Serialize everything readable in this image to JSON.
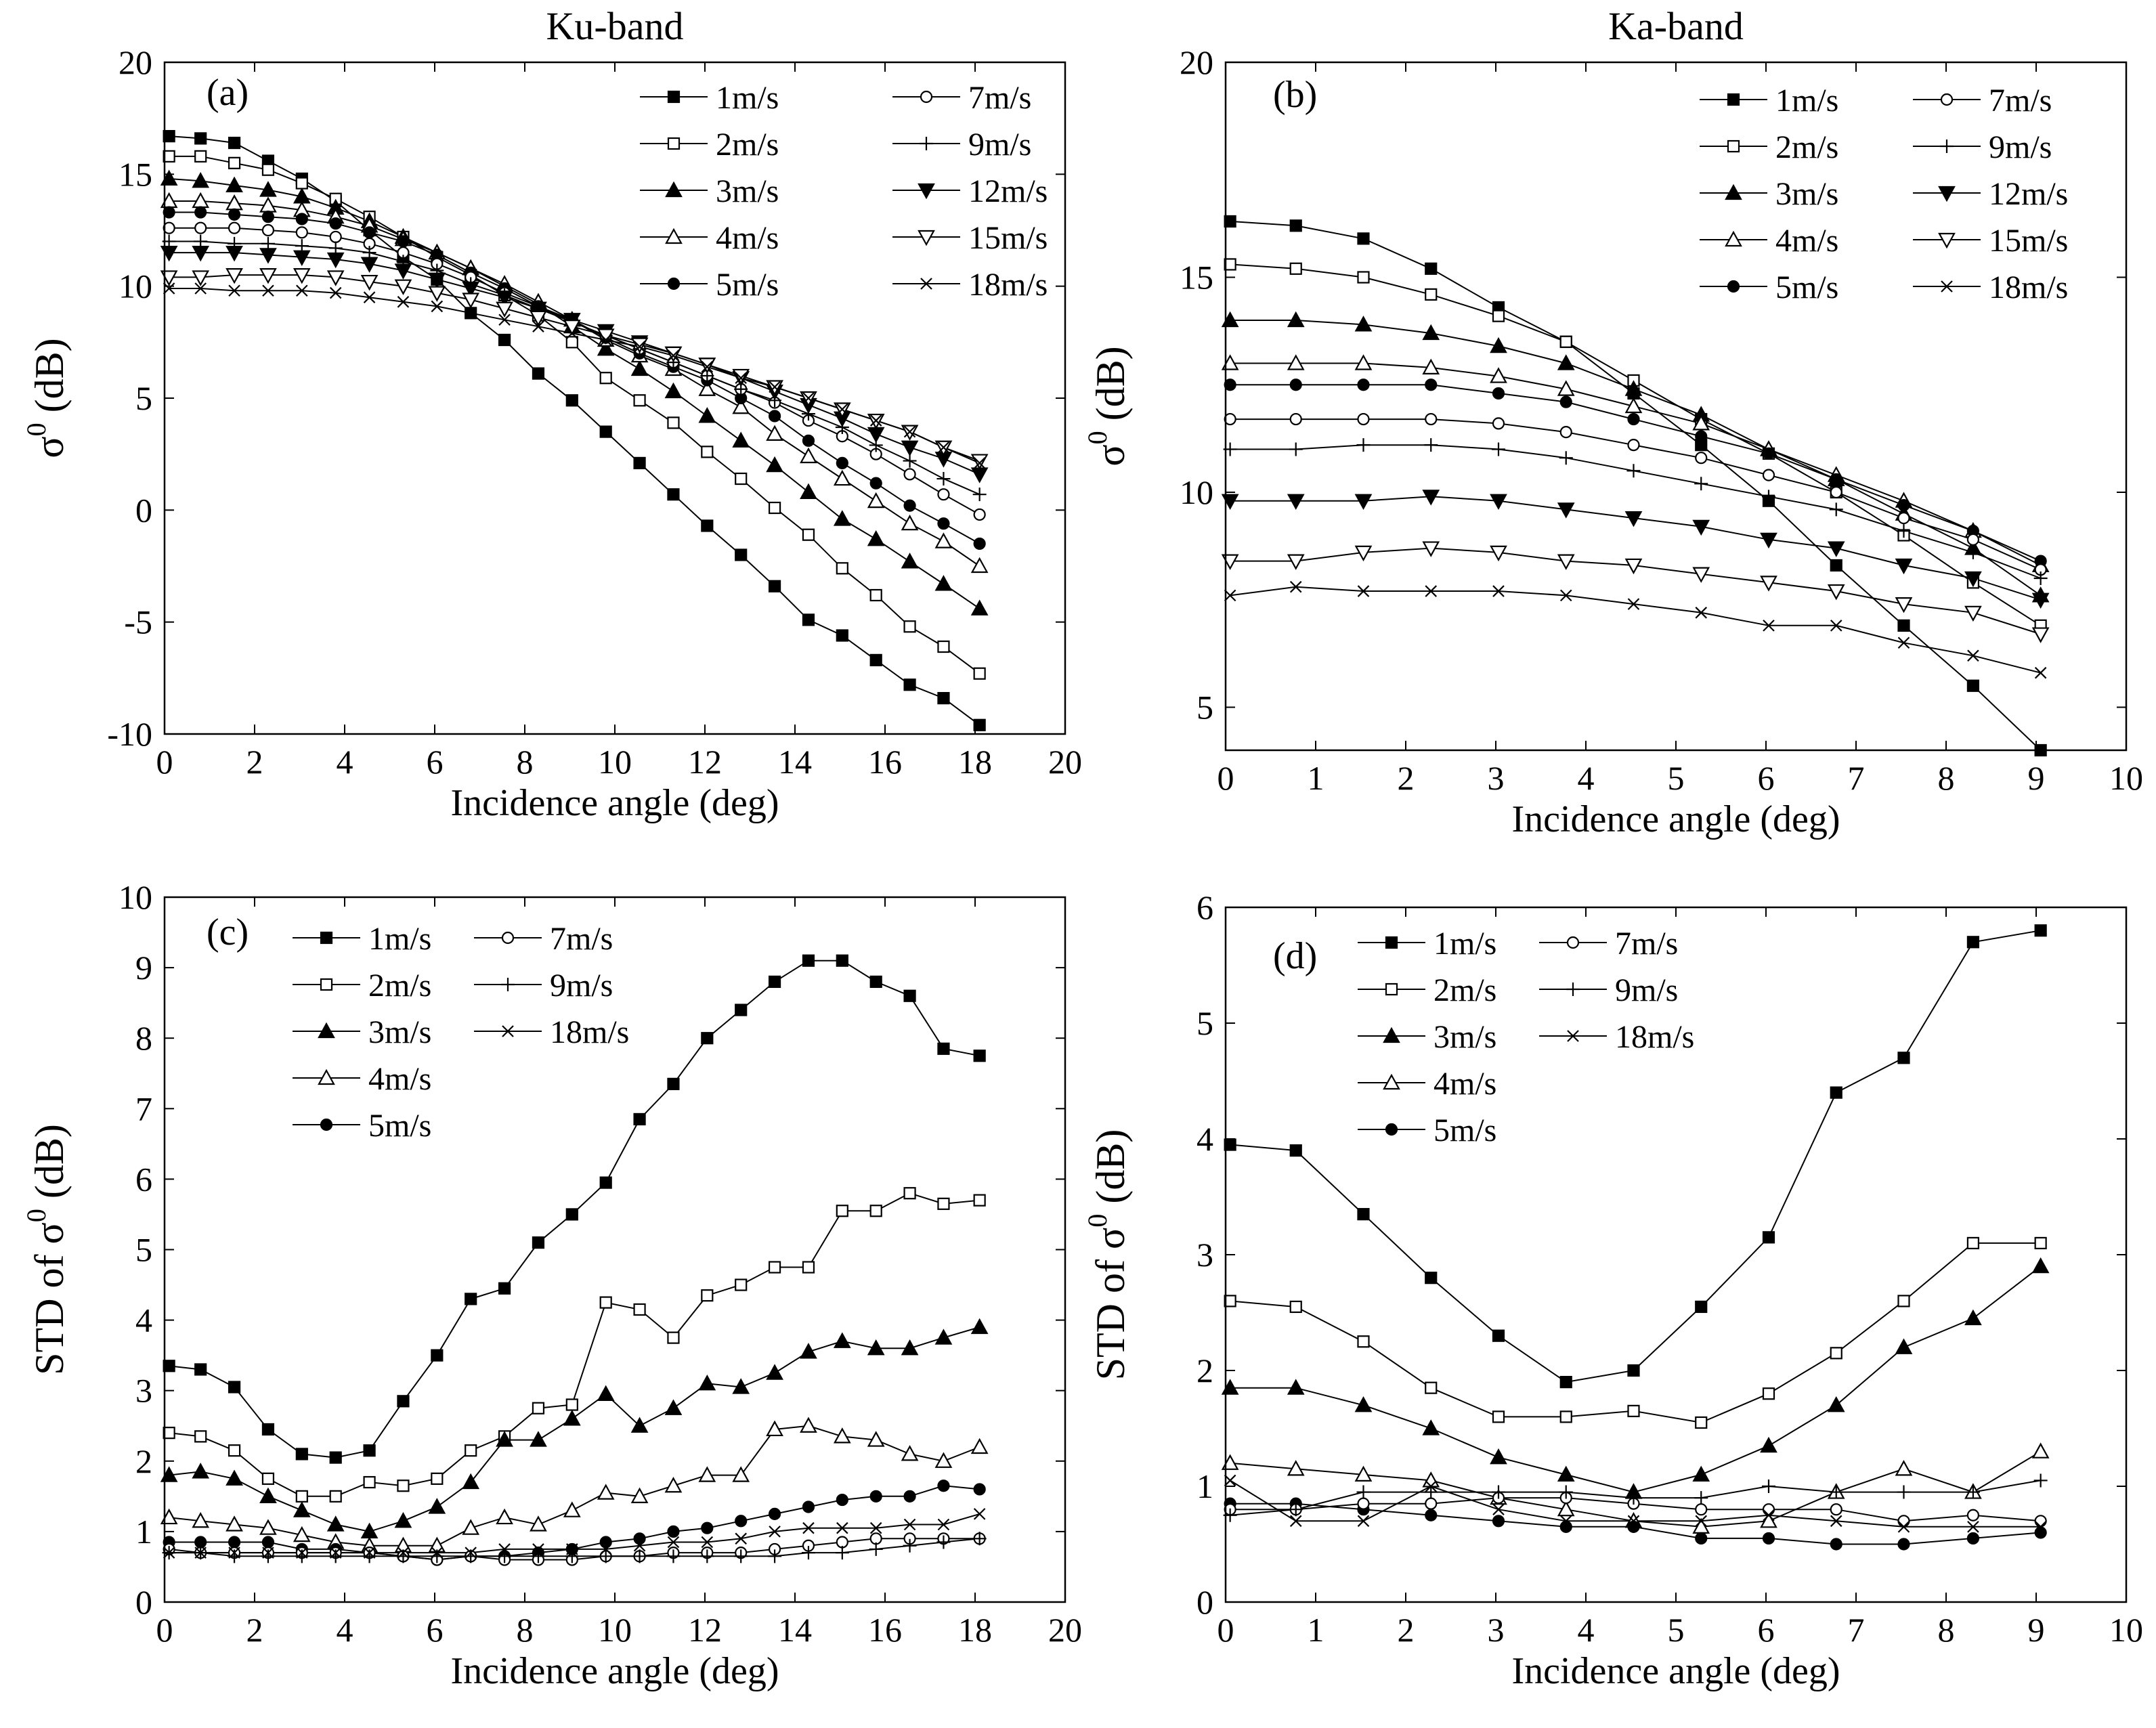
{
  "chart_data": [
    {
      "id": "a",
      "type": "line",
      "title": "Ku-band",
      "panel_label": "(a)",
      "xlabel": "Incidence angle (deg)",
      "ylabel_main": "σ",
      "ylabel_sup": "0",
      "ylabel_tail": " (dB)",
      "xlim": [
        0,
        20
      ],
      "ylim": [
        -10,
        20
      ],
      "xticks": [
        0,
        2,
        4,
        6,
        8,
        10,
        12,
        14,
        16,
        18,
        20
      ],
      "yticks": [
        -10,
        -5,
        0,
        5,
        10,
        15,
        20
      ],
      "x": [
        0.1,
        0.8,
        1.55,
        2.3,
        3.05,
        3.8,
        4.55,
        5.3,
        6.05,
        6.8,
        7.55,
        8.3,
        9.05,
        9.8,
        10.55,
        11.3,
        12.05,
        12.8,
        13.55,
        14.3,
        15.05,
        15.8,
        16.55,
        17.3,
        18.1
      ],
      "legend_columns": 2,
      "series": [
        {
          "name": "1m/s",
          "marker": "square-filled",
          "values": [
            16.7,
            16.6,
            16.4,
            15.6,
            14.8,
            13.8,
            12.5,
            11.3,
            10.3,
            8.8,
            7.6,
            6.1,
            4.9,
            3.5,
            2.1,
            0.7,
            -0.7,
            -2.0,
            -3.4,
            -4.9,
            -5.6,
            -6.7,
            -7.8,
            -8.4,
            -9.6
          ]
        },
        {
          "name": "2m/s",
          "marker": "square-open",
          "values": [
            15.8,
            15.8,
            15.5,
            15.2,
            14.6,
            13.9,
            13.1,
            12.2,
            11.3,
            10.5,
            9.6,
            8.7,
            7.5,
            5.9,
            4.9,
            3.9,
            2.6,
            1.4,
            0.1,
            -1.1,
            -2.6,
            -3.8,
            -5.2,
            -6.1,
            -7.3
          ]
        },
        {
          "name": "3m/s",
          "marker": "triangle-filled",
          "values": [
            14.8,
            14.7,
            14.5,
            14.3,
            14.0,
            13.5,
            12.9,
            12.2,
            11.5,
            10.8,
            10.0,
            9.2,
            8.2,
            7.2,
            6.3,
            5.3,
            4.2,
            3.1,
            2.0,
            0.8,
            -0.4,
            -1.3,
            -2.3,
            -3.3,
            -4.4
          ]
        },
        {
          "name": "4m/s",
          "marker": "triangle-open",
          "values": [
            13.8,
            13.8,
            13.7,
            13.6,
            13.4,
            13.1,
            12.7,
            12.1,
            11.5,
            10.8,
            10.1,
            9.3,
            8.5,
            7.6,
            6.9,
            6.3,
            5.4,
            4.6,
            3.4,
            2.4,
            1.4,
            0.4,
            -0.6,
            -1.4,
            -2.5
          ]
        },
        {
          "name": "5m/s",
          "marker": "circle-filled",
          "values": [
            13.3,
            13.3,
            13.2,
            13.1,
            13.0,
            12.8,
            12.4,
            12.0,
            11.4,
            10.6,
            9.9,
            9.1,
            8.5,
            7.7,
            7.0,
            6.4,
            5.8,
            5.0,
            4.2,
            3.1,
            2.1,
            1.2,
            0.2,
            -0.6,
            -1.5
          ]
        },
        {
          "name": "7m/s",
          "marker": "circle-open",
          "values": [
            12.6,
            12.6,
            12.6,
            12.5,
            12.4,
            12.2,
            11.9,
            11.5,
            11.0,
            10.4,
            9.7,
            9.1,
            8.4,
            7.8,
            7.2,
            6.6,
            6.0,
            5.4,
            4.8,
            4.0,
            3.3,
            2.5,
            1.6,
            0.7,
            -0.2
          ]
        },
        {
          "name": "9m/s",
          "marker": "plus",
          "values": [
            12.0,
            12.0,
            11.9,
            11.9,
            11.8,
            11.7,
            11.5,
            11.1,
            10.7,
            10.1,
            9.6,
            9.0,
            8.4,
            7.8,
            7.2,
            6.6,
            6.0,
            5.4,
            4.9,
            4.3,
            3.7,
            2.9,
            2.2,
            1.4,
            0.7
          ]
        },
        {
          "name": "12m/s",
          "marker": "triangle-down-filled",
          "values": [
            11.5,
            11.5,
            11.5,
            11.4,
            11.3,
            11.2,
            11.0,
            10.7,
            10.3,
            9.9,
            9.5,
            9.0,
            8.5,
            8.0,
            7.5,
            7.0,
            6.5,
            5.9,
            5.3,
            4.7,
            4.1,
            3.4,
            2.8,
            2.3,
            1.6
          ]
        },
        {
          "name": "15m/s",
          "marker": "triangle-down-open",
          "values": [
            10.4,
            10.4,
            10.5,
            10.5,
            10.5,
            10.4,
            10.2,
            10.0,
            9.7,
            9.4,
            9.0,
            8.6,
            8.2,
            7.8,
            7.4,
            7.0,
            6.5,
            6.0,
            5.5,
            5.0,
            4.5,
            4.0,
            3.5,
            2.8,
            2.2
          ]
        },
        {
          "name": "18m/s",
          "marker": "x",
          "values": [
            9.9,
            9.9,
            9.8,
            9.8,
            9.8,
            9.7,
            9.5,
            9.3,
            9.1,
            8.8,
            8.5,
            8.2,
            7.9,
            7.6,
            7.3,
            6.9,
            6.4,
            5.9,
            5.5,
            5.0,
            4.5,
            4.0,
            3.5,
            2.8,
            2.1
          ]
        }
      ]
    },
    {
      "id": "b",
      "type": "line",
      "title": "Ka-band",
      "panel_label": "(b)",
      "xlabel": "Incidence angle (deg)",
      "ylabel_main": "σ",
      "ylabel_sup": "0",
      "ylabel_tail": " (dB)",
      "xlim": [
        0,
        10
      ],
      "ylim": [
        4,
        20
      ],
      "xticks": [
        0,
        1,
        2,
        3,
        4,
        5,
        6,
        7,
        8,
        9,
        10
      ],
      "yticks": [
        5,
        10,
        15,
        20
      ],
      "x": [
        0.05,
        0.78,
        1.53,
        2.28,
        3.03,
        3.78,
        4.53,
        5.28,
        6.03,
        6.78,
        7.53,
        8.3,
        9.05
      ],
      "legend_columns": 2,
      "series": [
        {
          "name": "1m/s",
          "marker": "square-filled",
          "values": [
            16.3,
            16.2,
            15.9,
            15.2,
            14.3,
            13.5,
            12.3,
            11.1,
            9.8,
            8.3,
            6.9,
            5.5,
            4.0
          ]
        },
        {
          "name": "2m/s",
          "marker": "square-open",
          "values": [
            15.3,
            15.2,
            15.0,
            14.6,
            14.1,
            13.5,
            12.6,
            11.7,
            10.9,
            10.0,
            9.0,
            7.9,
            6.9
          ]
        },
        {
          "name": "3m/s",
          "marker": "triangle-filled",
          "values": [
            14.0,
            14.0,
            13.9,
            13.7,
            13.4,
            13.0,
            12.4,
            11.8,
            11.0,
            10.3,
            9.5,
            8.7,
            7.6
          ]
        },
        {
          "name": "4m/s",
          "marker": "triangle-open",
          "values": [
            13.0,
            13.0,
            13.0,
            12.9,
            12.7,
            12.4,
            12.0,
            11.6,
            11.0,
            10.4,
            9.8,
            9.1,
            8.3
          ]
        },
        {
          "name": "5m/s",
          "marker": "circle-filled",
          "values": [
            12.5,
            12.5,
            12.5,
            12.5,
            12.3,
            12.1,
            11.7,
            11.3,
            10.9,
            10.3,
            9.7,
            9.1,
            8.4
          ]
        },
        {
          "name": "7m/s",
          "marker": "circle-open",
          "values": [
            11.7,
            11.7,
            11.7,
            11.7,
            11.6,
            11.4,
            11.1,
            10.8,
            10.4,
            10.0,
            9.4,
            8.9,
            8.2
          ]
        },
        {
          "name": "9m/s",
          "marker": "plus",
          "values": [
            11.0,
            11.0,
            11.1,
            11.1,
            11.0,
            10.8,
            10.5,
            10.2,
            9.9,
            9.6,
            9.1,
            8.6,
            8.0
          ]
        },
        {
          "name": "12m/s",
          "marker": "triangle-down-filled",
          "values": [
            9.8,
            9.8,
            9.8,
            9.9,
            9.8,
            9.6,
            9.4,
            9.2,
            8.9,
            8.7,
            8.3,
            8.0,
            7.5
          ]
        },
        {
          "name": "15m/s",
          "marker": "triangle-down-open",
          "values": [
            8.4,
            8.4,
            8.6,
            8.7,
            8.6,
            8.4,
            8.3,
            8.1,
            7.9,
            7.7,
            7.4,
            7.2,
            6.7
          ]
        },
        {
          "name": "18m/s",
          "marker": "x",
          "values": [
            7.6,
            7.8,
            7.7,
            7.7,
            7.7,
            7.6,
            7.4,
            7.2,
            6.9,
            6.9,
            6.5,
            6.2,
            5.8
          ]
        }
      ]
    },
    {
      "id": "c",
      "type": "line",
      "title": "",
      "panel_label": "(c)",
      "xlabel": "Incidence angle (deg)",
      "ylabel_main": "STD of σ",
      "ylabel_sup": "0",
      "ylabel_tail": " (dB)",
      "xlim": [
        0,
        20
      ],
      "ylim": [
        0,
        10
      ],
      "xticks": [
        0,
        2,
        4,
        6,
        8,
        10,
        12,
        14,
        16,
        18,
        20
      ],
      "yticks": [
        0,
        1,
        2,
        3,
        4,
        5,
        6,
        7,
        8,
        9,
        10
      ],
      "x": [
        0.1,
        0.8,
        1.55,
        2.3,
        3.05,
        3.8,
        4.55,
        5.3,
        6.05,
        6.8,
        7.55,
        8.3,
        9.05,
        9.8,
        10.55,
        11.3,
        12.05,
        12.8,
        13.55,
        14.3,
        15.05,
        15.8,
        16.55,
        17.3,
        18.1
      ],
      "legend_columns": 2,
      "series": [
        {
          "name": "1m/s",
          "marker": "square-filled",
          "values": [
            3.35,
            3.3,
            3.05,
            2.45,
            2.1,
            2.05,
            2.15,
            2.85,
            3.5,
            4.3,
            4.45,
            5.1,
            5.5,
            5.95,
            6.85,
            7.35,
            8.0,
            8.4,
            8.8,
            9.1,
            9.1,
            8.8,
            8.6,
            7.85,
            7.75
          ]
        },
        {
          "name": "2m/s",
          "marker": "square-open",
          "values": [
            2.4,
            2.35,
            2.15,
            1.75,
            1.5,
            1.5,
            1.7,
            1.65,
            1.75,
            2.15,
            2.35,
            2.75,
            2.8,
            4.25,
            4.15,
            3.75,
            4.35,
            4.5,
            4.75,
            4.75,
            5.55,
            5.55,
            5.8,
            5.65,
            5.7
          ]
        },
        {
          "name": "3m/s",
          "marker": "triangle-filled",
          "values": [
            1.8,
            1.85,
            1.75,
            1.5,
            1.3,
            1.1,
            1.0,
            1.15,
            1.35,
            1.7,
            2.3,
            2.3,
            2.6,
            2.95,
            2.5,
            2.75,
            3.1,
            3.05,
            3.25,
            3.55,
            3.7,
            3.6,
            3.6,
            3.75,
            3.9
          ]
        },
        {
          "name": "4m/s",
          "marker": "triangle-open",
          "values": [
            1.2,
            1.15,
            1.1,
            1.05,
            0.95,
            0.85,
            0.8,
            0.8,
            0.8,
            1.05,
            1.2,
            1.1,
            1.3,
            1.55,
            1.5,
            1.65,
            1.8,
            1.8,
            2.45,
            2.5,
            2.35,
            2.3,
            2.1,
            2.0,
            2.2
          ]
        },
        {
          "name": "5m/s",
          "marker": "circle-filled",
          "values": [
            0.85,
            0.85,
            0.85,
            0.85,
            0.75,
            0.75,
            0.7,
            0.65,
            0.6,
            0.65,
            0.65,
            0.7,
            0.75,
            0.85,
            0.9,
            1.0,
            1.05,
            1.15,
            1.25,
            1.35,
            1.45,
            1.5,
            1.5,
            1.65,
            1.6
          ]
        },
        {
          "name": "7m/s",
          "marker": "circle-open",
          "values": [
            0.75,
            0.7,
            0.7,
            0.7,
            0.7,
            0.7,
            0.7,
            0.65,
            0.6,
            0.65,
            0.6,
            0.6,
            0.6,
            0.65,
            0.65,
            0.7,
            0.7,
            0.7,
            0.75,
            0.8,
            0.85,
            0.9,
            0.9,
            0.9,
            0.9
          ]
        },
        {
          "name": "9m/s",
          "marker": "plus",
          "values": [
            0.7,
            0.7,
            0.65,
            0.65,
            0.65,
            0.65,
            0.65,
            0.65,
            0.65,
            0.65,
            0.65,
            0.65,
            0.65,
            0.65,
            0.65,
            0.65,
            0.65,
            0.65,
            0.65,
            0.7,
            0.7,
            0.75,
            0.8,
            0.85,
            0.9
          ]
        },
        {
          "name": "18m/s",
          "marker": "x",
          "values": [
            0.7,
            0.7,
            0.7,
            0.7,
            0.7,
            0.7,
            0.7,
            0.7,
            0.7,
            0.7,
            0.75,
            0.75,
            0.75,
            0.75,
            0.8,
            0.85,
            0.85,
            0.9,
            1.0,
            1.05,
            1.05,
            1.05,
            1.1,
            1.1,
            1.25
          ]
        }
      ]
    },
    {
      "id": "d",
      "type": "line",
      "title": "",
      "panel_label": "(d)",
      "xlabel": "Incidence angle (deg)",
      "ylabel_main": "STD of σ",
      "ylabel_sup": "0",
      "ylabel_tail": " (dB)",
      "xlim": [
        0,
        10
      ],
      "ylim": [
        0,
        6
      ],
      "xticks": [
        0,
        1,
        2,
        3,
        4,
        5,
        6,
        7,
        8,
        9,
        10
      ],
      "yticks": [
        0,
        1,
        2,
        3,
        4,
        5,
        6
      ],
      "x": [
        0.05,
        0.78,
        1.53,
        2.28,
        3.03,
        3.78,
        4.53,
        5.28,
        6.03,
        6.78,
        7.53,
        8.3,
        9.05
      ],
      "legend_columns": 2,
      "series": [
        {
          "name": "1m/s",
          "marker": "square-filled",
          "values": [
            3.95,
            3.9,
            3.35,
            2.8,
            2.3,
            1.9,
            2.0,
            2.55,
            3.15,
            4.4,
            4.7,
            5.7,
            5.8
          ]
        },
        {
          "name": "2m/s",
          "marker": "square-open",
          "values": [
            2.6,
            2.55,
            2.25,
            1.85,
            1.6,
            1.6,
            1.65,
            1.55,
            1.8,
            2.15,
            2.6,
            3.1,
            3.1
          ]
        },
        {
          "name": "3m/s",
          "marker": "triangle-filled",
          "values": [
            1.85,
            1.85,
            1.7,
            1.5,
            1.25,
            1.1,
            0.95,
            1.1,
            1.35,
            1.7,
            2.2,
            2.45,
            2.9
          ]
        },
        {
          "name": "4m/s",
          "marker": "triangle-open",
          "values": [
            1.2,
            1.15,
            1.1,
            1.05,
            0.9,
            0.8,
            0.7,
            0.65,
            0.7,
            0.95,
            1.15,
            0.95,
            1.3
          ]
        },
        {
          "name": "5m/s",
          "marker": "circle-filled",
          "values": [
            0.85,
            0.85,
            0.8,
            0.75,
            0.7,
            0.65,
            0.65,
            0.55,
            0.55,
            0.5,
            0.5,
            0.55,
            0.6
          ]
        },
        {
          "name": "7m/s",
          "marker": "circle-open",
          "values": [
            0.8,
            0.8,
            0.85,
            0.85,
            0.9,
            0.9,
            0.85,
            0.8,
            0.8,
            0.8,
            0.7,
            0.75,
            0.7
          ]
        },
        {
          "name": "9m/s",
          "marker": "plus",
          "values": [
            0.75,
            0.8,
            0.95,
            0.95,
            0.95,
            0.95,
            0.9,
            0.9,
            1.0,
            0.95,
            0.95,
            0.95,
            1.05
          ]
        },
        {
          "name": "18m/s",
          "marker": "x",
          "values": [
            1.05,
            0.7,
            0.7,
            1.0,
            0.8,
            0.7,
            0.7,
            0.7,
            0.75,
            0.7,
            0.65,
            0.65,
            0.65
          ]
        }
      ]
    }
  ]
}
